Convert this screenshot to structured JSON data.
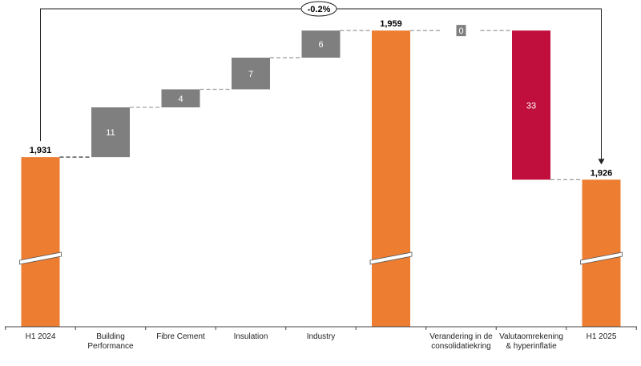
{
  "chart_data": {
    "type": "bar",
    "subtype": "waterfall",
    "title": "",
    "xlabel": "",
    "ylabel": "",
    "axis_break": true,
    "grid": false,
    "legend": "none",
    "colors": {
      "total": "#ED7D31",
      "increase": "#7F7F7F",
      "decrease": "#C00F3D",
      "zero": "#7F7F7F"
    },
    "bars": [
      {
        "category": "H1 2024",
        "kind": "total",
        "value": 1931,
        "label": "1,931"
      },
      {
        "category": "Building Performance",
        "kind": "increase",
        "value": 11,
        "label": "11"
      },
      {
        "category": "Fibre Cement",
        "kind": "increase",
        "value": 4,
        "label": "4"
      },
      {
        "category": "Insulation",
        "kind": "increase",
        "value": 7,
        "label": "7"
      },
      {
        "category": "Industry",
        "kind": "increase",
        "value": 6,
        "label": "6"
      },
      {
        "category": "",
        "kind": "total",
        "value": 1959,
        "label": "1,959"
      },
      {
        "category": "Verandering in de consolidatiekring",
        "kind": "zero",
        "value": 0,
        "label": "0"
      },
      {
        "category": "Valutaomrekening & hyperinflatie",
        "kind": "decrease",
        "value": -33,
        "label": "33"
      },
      {
        "category": "H1 2025",
        "kind": "total",
        "value": 1926,
        "label": "1,926"
      }
    ],
    "category_label_lines": [
      [
        "H1 2024"
      ],
      [
        "Building",
        "Performance"
      ],
      [
        "Fibre Cement"
      ],
      [
        "Insulation"
      ],
      [
        "Industry"
      ],
      [
        ""
      ],
      [
        "Verandering in de",
        "consolidatiekring"
      ],
      [
        "Valutaomrekening",
        "& hyperinflatie"
      ],
      [
        "H1 2025"
      ]
    ],
    "annotation": {
      "text": "-0.2%",
      "from": "H1 2024",
      "to": "H1 2025"
    }
  }
}
